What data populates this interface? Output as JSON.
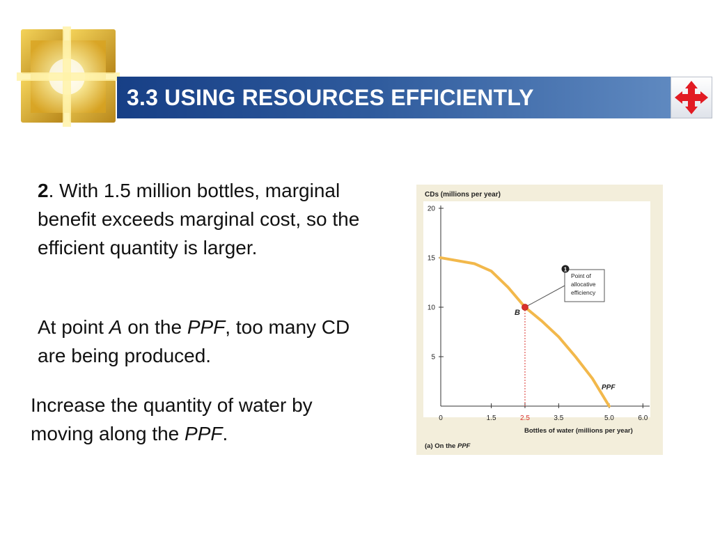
{
  "slide": {
    "title": "3.3 USING RESOURCES EFFICIENTLY"
  },
  "text": {
    "block1": {
      "number": "2",
      "body": ". With 1.5 million bottles, marginal benefit exceeds marginal cost, so the efficient quantity is larger."
    },
    "block2": {
      "p1": "At point ",
      "point": "A",
      "p2": " on the ",
      "ppf": "PPF",
      "p3": ", too many CD are being produced."
    },
    "block3": {
      "p1": "Increase the quantity of water by moving along the ",
      "ppf": "PPF",
      "p2": "."
    }
  },
  "icons": {
    "logo": "golden-window-logo-icon",
    "nav": "four-way-arrows-icon"
  },
  "colors": {
    "title_bar_start": "#173f86",
    "title_bar_end": "#5f89c0",
    "panel_bg": "#f3eedb",
    "curve": "#f2b84b",
    "highlight": "#d9302a",
    "nav_arrows": "#e21b23"
  },
  "chart_data": {
    "type": "line",
    "title": "CDs (millions per year)",
    "xlabel": "Bottles of water (millions per year)",
    "caption_prefix": "(a) On the ",
    "caption_ppf": "PPF",
    "xlim": [
      0,
      6.2
    ],
    "ylim": [
      0,
      20
    ],
    "x_ticks": [
      {
        "label": "0",
        "value": 0,
        "highlight": false
      },
      {
        "label": "1.5",
        "value": 1.5,
        "highlight": false
      },
      {
        "label": "2.5",
        "value": 2.5,
        "highlight": true
      },
      {
        "label": "3.5",
        "value": 3.5,
        "highlight": false
      },
      {
        "label": "5.0",
        "value": 5.0,
        "highlight": false
      },
      {
        "label": "6.0",
        "value": 6.0,
        "highlight": false
      }
    ],
    "y_ticks": [
      {
        "label": "5",
        "value": 5
      },
      {
        "label": "10",
        "value": 10
      },
      {
        "label": "15",
        "value": 15
      },
      {
        "label": "20",
        "value": 20
      }
    ],
    "series": [
      {
        "name": "PPF",
        "x": [
          0,
          1.0,
          1.5,
          2.0,
          2.5,
          3.0,
          3.5,
          4.0,
          4.5,
          5.0
        ],
        "y": [
          15,
          14.4,
          13.65,
          12.0,
          10,
          8.6,
          7.0,
          5.0,
          2.8,
          0
        ]
      }
    ],
    "point": {
      "label": "B",
      "x": 2.5,
      "y": 10
    },
    "callout": {
      "number": "1",
      "lines": [
        "Point of",
        "allocative",
        "efficiency"
      ]
    },
    "curve_label": "PPF",
    "grid": false
  }
}
